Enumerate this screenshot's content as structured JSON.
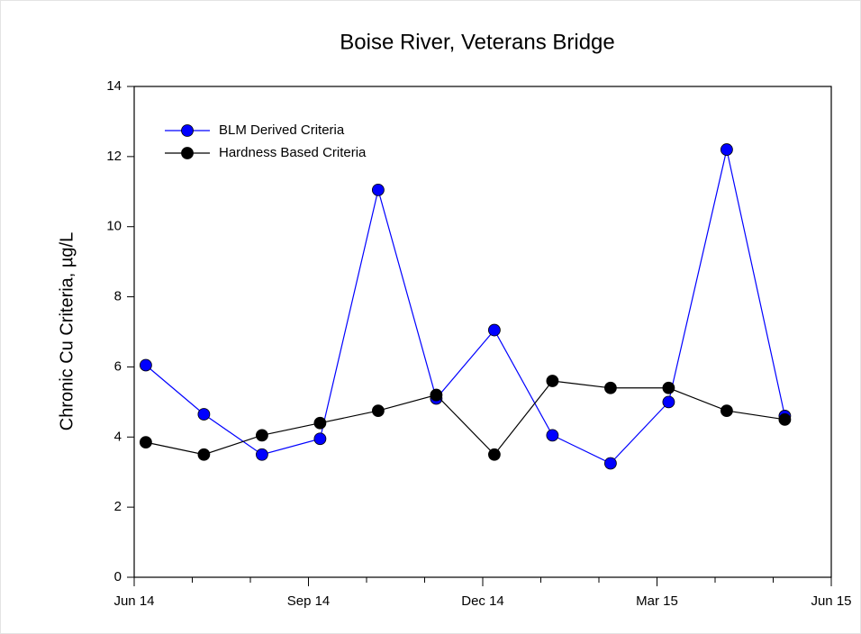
{
  "chart_data": {
    "type": "line",
    "title": "Boise River, Veterans Bridge",
    "y_label": "Chronic Cu Criteria, µg/L",
    "x": [
      "2014-06",
      "2014-07",
      "2014-08",
      "2014-09",
      "2014-10",
      "2014-11",
      "2014-12",
      "2015-01",
      "2015-02",
      "2015-03",
      "2015-04",
      "2015-05"
    ],
    "series": [
      {
        "name": "BLM Derived Criteria",
        "color": "#0000ff",
        "values": [
          6.05,
          4.65,
          3.5,
          3.95,
          11.05,
          5.1,
          7.05,
          4.05,
          3.25,
          5.0,
          12.2,
          4.6
        ]
      },
      {
        "name": "Hardness Based Criteria",
        "color": "#000000",
        "values": [
          3.85,
          3.5,
          4.05,
          4.4,
          4.75,
          5.2,
          3.5,
          5.6,
          5.4,
          5.4,
          4.75,
          4.5
        ]
      }
    ],
    "xlim": [
      "2014-06",
      "2015-06"
    ],
    "xticks": [
      {
        "value": "2014-06",
        "label": "Jun 14"
      },
      {
        "value": "2014-09",
        "label": "Sep 14"
      },
      {
        "value": "2014-12",
        "label": "Dec 14"
      },
      {
        "value": "2015-03",
        "label": "Mar 15"
      },
      {
        "value": "2015-06",
        "label": "Jun 15"
      }
    ],
    "ylim": [
      0,
      14
    ],
    "yticks": [
      0,
      2,
      4,
      6,
      8,
      10,
      12,
      14
    ],
    "legend": "upper left",
    "grid": false
  }
}
